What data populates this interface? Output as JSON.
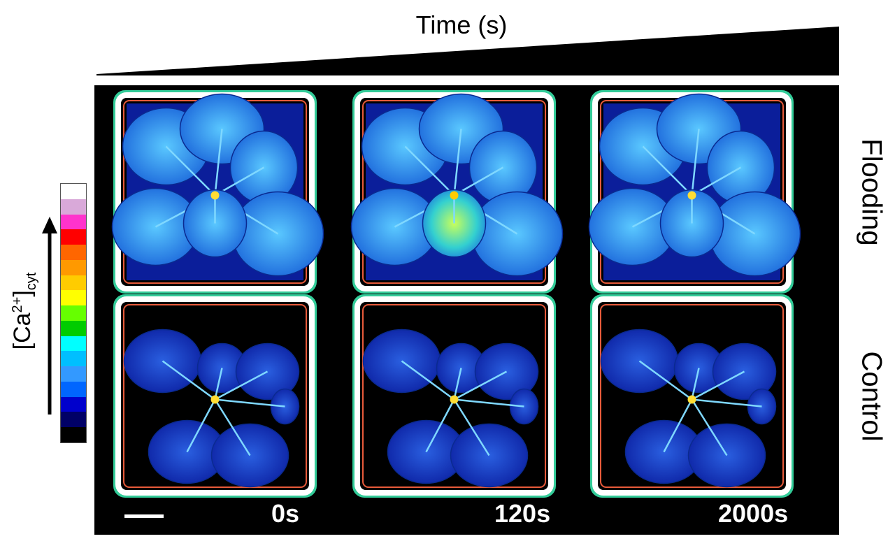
{
  "header": {
    "title": "Time (s)"
  },
  "colorbar": {
    "label_main": "[Ca",
    "label_sup": "2+",
    "label_close": "]",
    "label_sub": "cyt",
    "colors": [
      "#ffffff",
      "#d9a9d9",
      "#ff33cc",
      "#ff0000",
      "#ff6600",
      "#ff9900",
      "#ffcc00",
      "#ffff00",
      "#66ff00",
      "#00cc00",
      "#00ffff",
      "#00bfff",
      "#3399ff",
      "#0066ff",
      "#0000cc",
      "#000066",
      "#000000"
    ]
  },
  "rows": {
    "flooding": "Flooding",
    "control": "Control"
  },
  "time_points": [
    "0s",
    "120s",
    "2000s"
  ],
  "colors": {
    "background": "#000000",
    "frame": "#ffffff",
    "leaf_low": "#0a1fa8",
    "leaf_mid": "#1f7ae0",
    "leaf_high": "#7ad3ff"
  }
}
